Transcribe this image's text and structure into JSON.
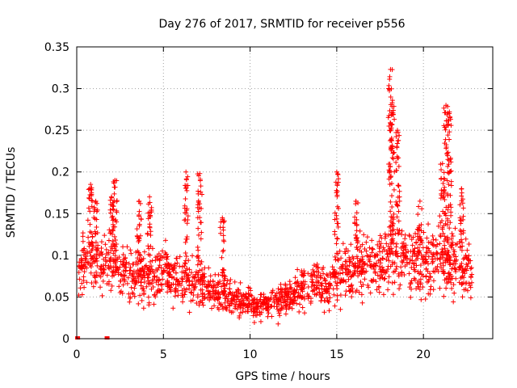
{
  "chart_data": {
    "type": "scatter",
    "title": "Day 276 of 2017, SRMTID for receiver p556",
    "xlabel": "GPS time / hours",
    "ylabel": "SRMTID / TECUs",
    "xlim": [
      0,
      24
    ],
    "ylim": [
      0,
      0.35
    ],
    "xticks": [
      0,
      5,
      10,
      15,
      20
    ],
    "xtick_labels": [
      "0",
      "5",
      "10",
      "15",
      "20"
    ],
    "yticks": [
      0,
      0.05,
      0.1,
      0.15,
      0.2,
      0.25,
      0.3,
      0.35
    ],
    "ytick_labels": [
      "0",
      "0.05",
      "0.1",
      "0.15",
      "0.2",
      "0.25",
      "0.3",
      "0.35"
    ],
    "grid": true,
    "marker": "plus",
    "color": "#ff0000",
    "series": [
      {
        "name": "SRMTID",
        "trend": [
          [
            0.0,
            0.085
          ],
          [
            0.5,
            0.09
          ],
          [
            1.0,
            0.095
          ],
          [
            1.5,
            0.09
          ],
          [
            2.0,
            0.088
          ],
          [
            2.5,
            0.08
          ],
          [
            3.0,
            0.075
          ],
          [
            4.0,
            0.075
          ],
          [
            5.0,
            0.078
          ],
          [
            6.0,
            0.075
          ],
          [
            7.0,
            0.068
          ],
          [
            8.0,
            0.058
          ],
          [
            9.0,
            0.05
          ],
          [
            10.0,
            0.042
          ],
          [
            10.5,
            0.038
          ],
          [
            11.0,
            0.04
          ],
          [
            12.0,
            0.048
          ],
          [
            13.0,
            0.062
          ],
          [
            14.0,
            0.07
          ],
          [
            14.5,
            0.06
          ],
          [
            15.0,
            0.072
          ],
          [
            16.0,
            0.082
          ],
          [
            17.0,
            0.09
          ],
          [
            18.0,
            0.1
          ],
          [
            19.0,
            0.1
          ],
          [
            20.0,
            0.095
          ],
          [
            21.0,
            0.1
          ],
          [
            22.0,
            0.09
          ],
          [
            22.8,
            0.075
          ]
        ],
        "peaks": [
          {
            "x": 0.8,
            "y": 0.185
          },
          {
            "x": 1.1,
            "y": 0.165
          },
          {
            "x": 2.0,
            "y": 0.17
          },
          {
            "x": 2.2,
            "y": 0.19
          },
          {
            "x": 3.6,
            "y": 0.165
          },
          {
            "x": 4.2,
            "y": 0.17
          },
          {
            "x": 6.3,
            "y": 0.2
          },
          {
            "x": 7.1,
            "y": 0.198
          },
          {
            "x": 8.4,
            "y": 0.145
          },
          {
            "x": 15.0,
            "y": 0.2
          },
          {
            "x": 16.1,
            "y": 0.165
          },
          {
            "x": 18.1,
            "y": 0.323
          },
          {
            "x": 18.2,
            "y": 0.283
          },
          {
            "x": 18.5,
            "y": 0.25
          },
          {
            "x": 19.8,
            "y": 0.165
          },
          {
            "x": 21.3,
            "y": 0.28
          },
          {
            "x": 21.5,
            "y": 0.272
          },
          {
            "x": 21.1,
            "y": 0.21
          },
          {
            "x": 22.2,
            "y": 0.18
          }
        ],
        "zeros": [
          {
            "x": 0.05,
            "y": 0.0
          },
          {
            "x": 1.75,
            "y": 0.0
          }
        ]
      }
    ]
  }
}
